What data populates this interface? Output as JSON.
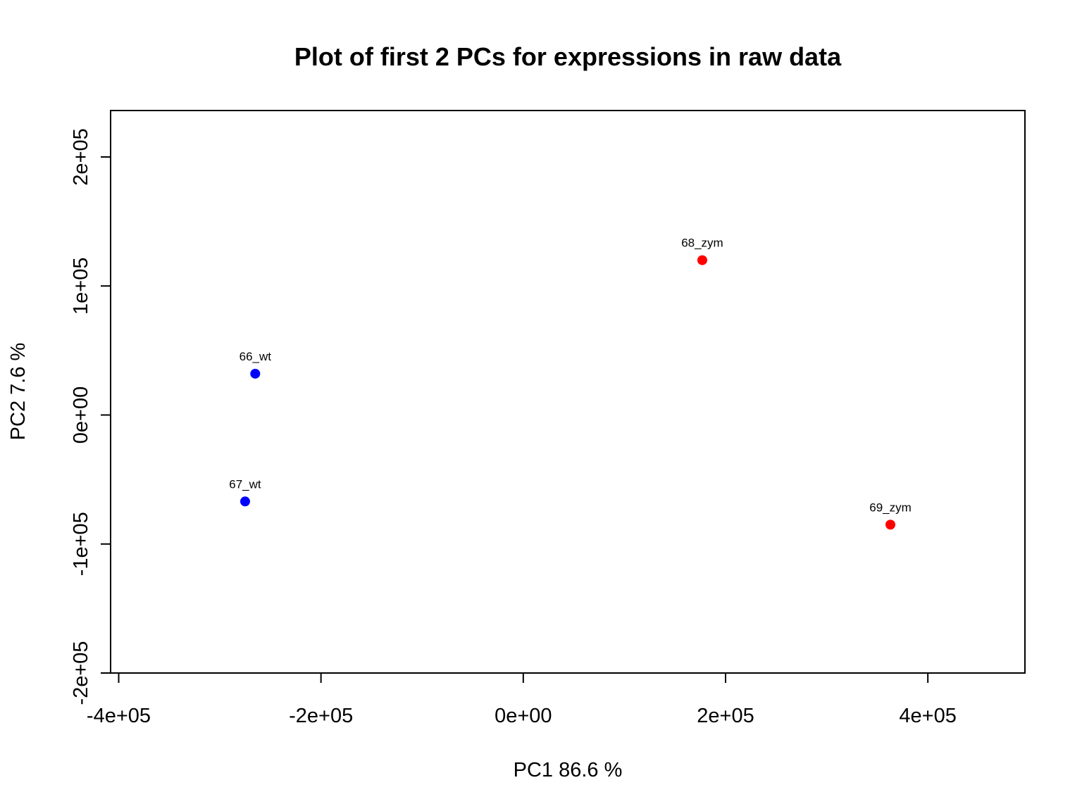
{
  "chart_data": {
    "type": "scatter",
    "title": "Plot of first 2 PCs for expressions in raw data",
    "xlabel": "PC1 86.6 %",
    "ylabel": "PC2 7.6 %",
    "xlim": [
      -408000,
      496000
    ],
    "ylim": [
      -200000,
      236000
    ],
    "x_ticks": [
      {
        "value": -400000,
        "label": "-4e+05"
      },
      {
        "value": -200000,
        "label": "-2e+05"
      },
      {
        "value": 0,
        "label": "0e+00"
      },
      {
        "value": 200000,
        "label": "2e+05"
      },
      {
        "value": 400000,
        "label": "4e+05"
      }
    ],
    "y_ticks": [
      {
        "value": -200000,
        "label": "-2e+05"
      },
      {
        "value": -100000,
        "label": "-1e+05"
      },
      {
        "value": 0,
        "label": "0e+00"
      },
      {
        "value": 100000,
        "label": "1e+05"
      },
      {
        "value": 200000,
        "label": "2e+05"
      }
    ],
    "grid": false,
    "points": [
      {
        "label": "66_wt",
        "x": -265000,
        "y": 32000,
        "color": "#0000ff"
      },
      {
        "label": "67_wt",
        "x": -275000,
        "y": -67000,
        "color": "#0000ff"
      },
      {
        "label": "68_zym",
        "x": 177000,
        "y": 120000,
        "color": "#ff0000"
      },
      {
        "label": "69_zym",
        "x": 363000,
        "y": -85000,
        "color": "#ff0000"
      }
    ]
  }
}
